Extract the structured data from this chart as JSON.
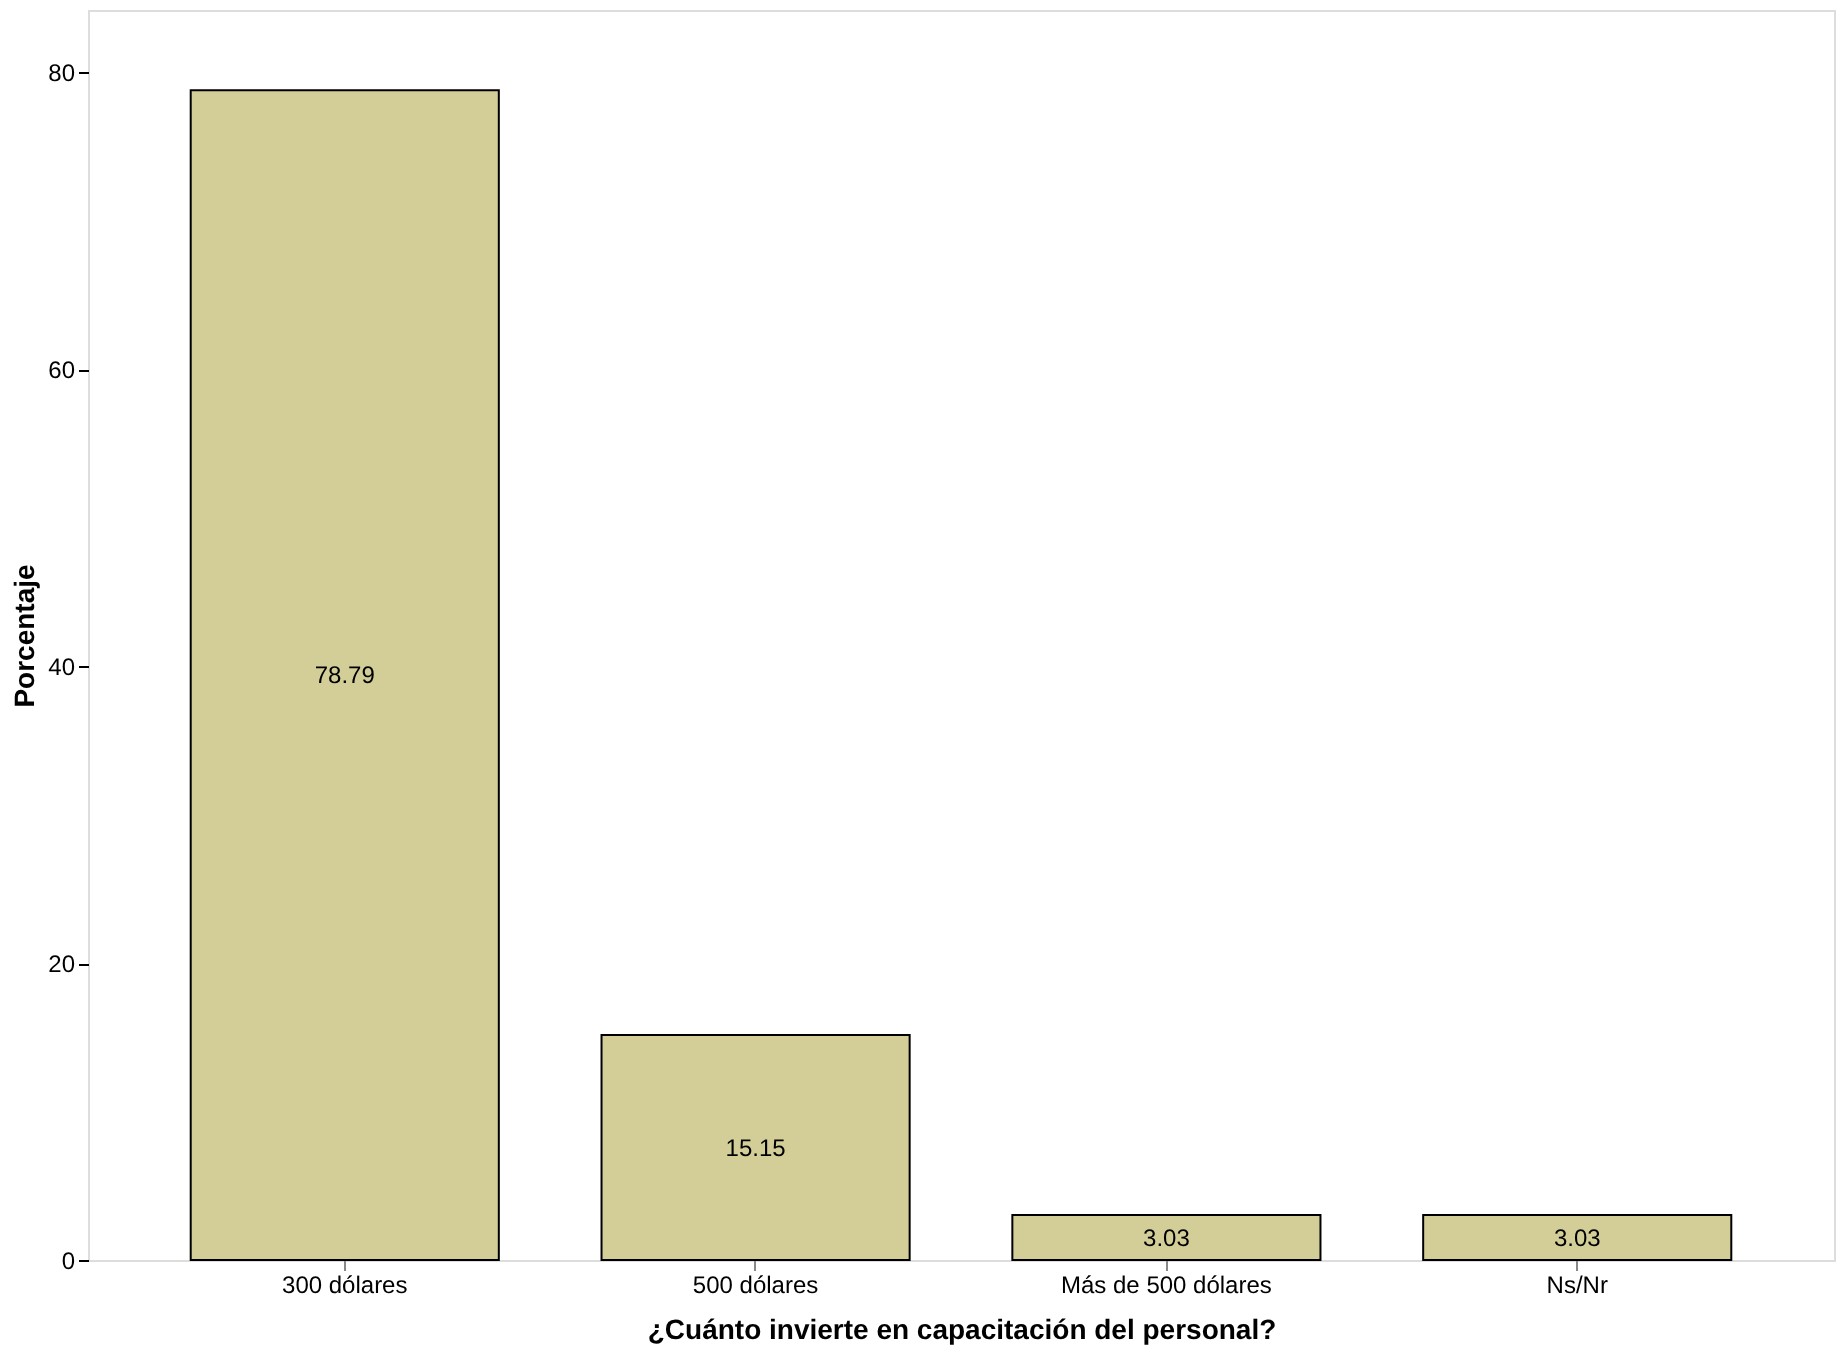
{
  "chart_data": {
    "type": "bar",
    "xlabel": "¿Cuánto invierte en capacitación del personal?",
    "ylabel": "Porcentaje",
    "categories": [
      "300 dólares",
      "500 dólares",
      "Más de 500 dólares",
      "Ns/Nr"
    ],
    "values": [
      78.79,
      15.15,
      3.03,
      3.03
    ],
    "color": "#d3ce97",
    "ylim": [
      0,
      84.2
    ],
    "yticks": [
      0,
      20,
      40,
      60,
      80
    ],
    "grid": false,
    "data_labels": true
  }
}
